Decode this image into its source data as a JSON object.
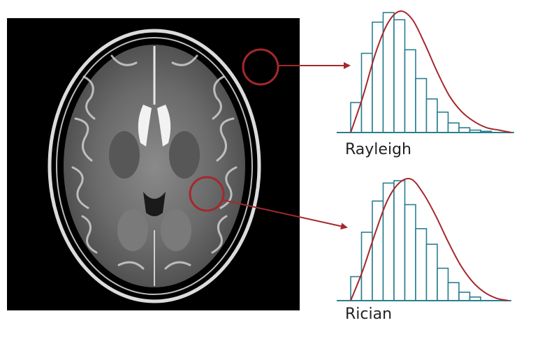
{
  "colors": {
    "accent": "#a5282c",
    "bars": "#2a7f91",
    "background": "#ffffff",
    "panel": "#000000"
  },
  "mri_image": {
    "icon": "mri-brain-axial-slice"
  },
  "histograms": [
    {
      "label": "Rayleigh",
      "bars": [
        0.25,
        0.66,
        0.92,
        1.0,
        0.94,
        0.69,
        0.45,
        0.28,
        0.17,
        0.08,
        0.04,
        0.02,
        0.01
      ],
      "curve": [
        0.0,
        0.3,
        0.65,
        0.9,
        1.0,
        0.93,
        0.73,
        0.5,
        0.3,
        0.17,
        0.09,
        0.04,
        0.02,
        0.0
      ]
    },
    {
      "label": "Rician",
      "bars": [
        0.2,
        0.57,
        0.83,
        0.98,
        1.0,
        0.8,
        0.6,
        0.47,
        0.27,
        0.15,
        0.07,
        0.03
      ],
      "curve": [
        0.0,
        0.25,
        0.55,
        0.82,
        0.97,
        1.0,
        0.88,
        0.7,
        0.49,
        0.3,
        0.16,
        0.07,
        0.02,
        0.0
      ]
    }
  ]
}
